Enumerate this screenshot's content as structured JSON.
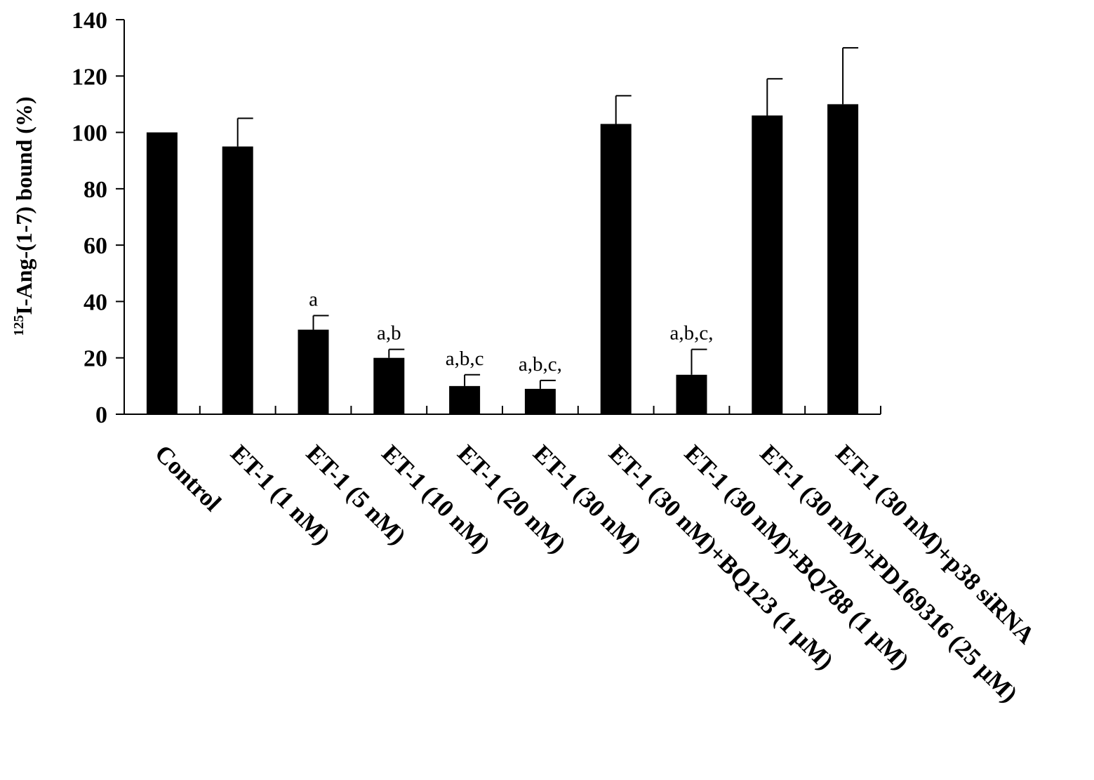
{
  "chart_data": {
    "type": "bar",
    "ylabel": {
      "superscript": "125",
      "text": "I-Ang-(1-7) bound (%)"
    },
    "xlabel": "",
    "ylim": [
      0,
      140
    ],
    "yticks": [
      "0",
      "20",
      "40",
      "60",
      "80",
      "100",
      "120",
      "140"
    ],
    "grid": false,
    "bar_color": "#000000",
    "categories": [
      "Control",
      "ET-1 (1 nM)",
      "ET-1 (5 nM)",
      "ET-1 (10 nM)",
      "ET-1 (20 nM)",
      "ET-1 (30 nM)",
      "ET-1 (30 nM)+BQ123 (1 μM)",
      "ET-1 (30 nM)+BQ788 (1 μM)",
      "ET-1 (30 nM)+PD169316 (25 μM)",
      "ET-1 (30 nM)+p38 siRNA"
    ],
    "values": [
      100,
      95,
      30,
      20,
      10,
      9,
      103,
      14,
      106,
      110
    ],
    "errors": [
      0,
      10,
      5,
      3,
      4,
      3,
      10,
      9,
      13,
      20
    ],
    "annotations": [
      "",
      "",
      "a",
      "a,b",
      "a,b,c",
      "a,b,c,",
      "",
      "a,b,c,",
      "",
      ""
    ]
  }
}
